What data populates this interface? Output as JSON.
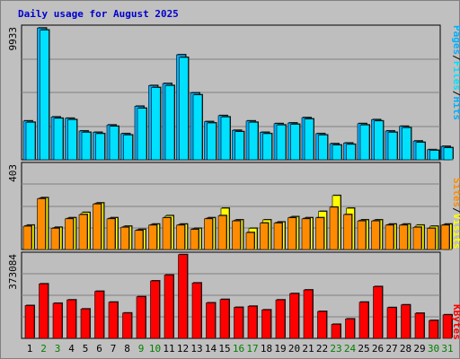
{
  "colors": {
    "background": "#c0c0c0",
    "panel": "#bebebe",
    "grid": "#808080",
    "title": "#0000cc",
    "hits_bar": "#00b0ff",
    "files_bar": "#00e0ff",
    "pages_label": "#00b0ff",
    "sites_bar": "#ff8c00",
    "visits_bar": "#ffff00",
    "kbytes_bar": "#ff0000",
    "weekday_label": "#000000",
    "weekend_label": "#008000"
  },
  "chart_data": [
    {
      "type": "bar",
      "title": "Daily usage for August 2025",
      "ymax_label": "9933",
      "ylim": [
        0,
        9933
      ],
      "grid": true,
      "legend_words": [
        "Pages",
        "Files",
        "Hits"
      ],
      "legend_seps": [
        "/",
        "/"
      ],
      "categories": [
        "1",
        "2",
        "3",
        "4",
        "5",
        "6",
        "7",
        "8",
        "9",
        "10",
        "11",
        "12",
        "13",
        "14",
        "15",
        "16",
        "17",
        "18",
        "19",
        "20",
        "21",
        "22",
        "23",
        "24",
        "25",
        "26",
        "27",
        "28",
        "29",
        "30",
        "31"
      ],
      "series": [
        {
          "name": "Hits",
          "values": [
            2900,
            9850,
            3200,
            3100,
            2150,
            2050,
            2600,
            1950,
            4000,
            5550,
            5700,
            7850,
            5000,
            2850,
            3300,
            2200,
            2900,
            2050,
            2700,
            2750,
            3150,
            1950,
            1200,
            1250,
            2700,
            3000,
            2150,
            2500,
            1400,
            750,
            1000
          ]
        },
        {
          "name": "Files",
          "values": [
            2800,
            9700,
            3100,
            3000,
            2050,
            1950,
            2500,
            1850,
            3850,
            5400,
            5550,
            7650,
            4850,
            2750,
            3200,
            2100,
            2800,
            1950,
            2600,
            2650,
            3050,
            1850,
            1100,
            1150,
            2600,
            2900,
            2050,
            2400,
            1300,
            700,
            900
          ]
        }
      ]
    },
    {
      "type": "bar",
      "ymax_label": "403",
      "ylim": [
        0,
        403
      ],
      "grid": true,
      "legend_words": [
        "Sites",
        "Visits"
      ],
      "legend_seps": [
        "/"
      ],
      "categories": [
        "1",
        "2",
        "3",
        "4",
        "5",
        "6",
        "7",
        "8",
        "9",
        "10",
        "11",
        "12",
        "13",
        "14",
        "15",
        "16",
        "17",
        "18",
        "19",
        "20",
        "21",
        "22",
        "23",
        "24",
        "25",
        "26",
        "27",
        "28",
        "29",
        "30",
        "31"
      ],
      "series": [
        {
          "name": "Visits",
          "values": [
            115,
            245,
            105,
            150,
            175,
            220,
            150,
            110,
            95,
            120,
            160,
            120,
            100,
            150,
            195,
            140,
            100,
            140,
            130,
            155,
            150,
            180,
            255,
            195,
            140,
            140,
            120,
            120,
            115,
            110,
            120
          ]
        },
        {
          "name": "Sites",
          "values": [
            110,
            240,
            100,
            145,
            165,
            215,
            145,
            105,
            90,
            115,
            150,
            115,
            95,
            145,
            160,
            135,
            80,
            125,
            125,
            150,
            145,
            150,
            200,
            165,
            135,
            135,
            115,
            115,
            105,
            100,
            115
          ]
        }
      ]
    },
    {
      "type": "bar",
      "ymax_label": "373084",
      "ylim": [
        0,
        373084
      ],
      "grid": true,
      "legend_words": [
        "KBytes"
      ],
      "legend_seps": [],
      "categories": [
        "1",
        "2",
        "3",
        "4",
        "5",
        "6",
        "7",
        "8",
        "9",
        "10",
        "11",
        "12",
        "13",
        "14",
        "15",
        "16",
        "17",
        "18",
        "19",
        "20",
        "21",
        "22",
        "23",
        "24",
        "25",
        "26",
        "27",
        "28",
        "29",
        "30",
        "31"
      ],
      "weekend_days": [
        2,
        3,
        9,
        10,
        16,
        17,
        23,
        24,
        30,
        31
      ],
      "series": [
        {
          "name": "KBytes",
          "values": [
            145000,
            241000,
            155000,
            170000,
            130000,
            208000,
            160000,
            112000,
            184000,
            254000,
            280000,
            370000,
            245000,
            157000,
            172000,
            137000,
            142000,
            126000,
            170000,
            198000,
            214000,
            119000,
            62000,
            86000,
            160000,
            229000,
            136000,
            148000,
            111000,
            79000,
            104000
          ]
        }
      ]
    }
  ]
}
